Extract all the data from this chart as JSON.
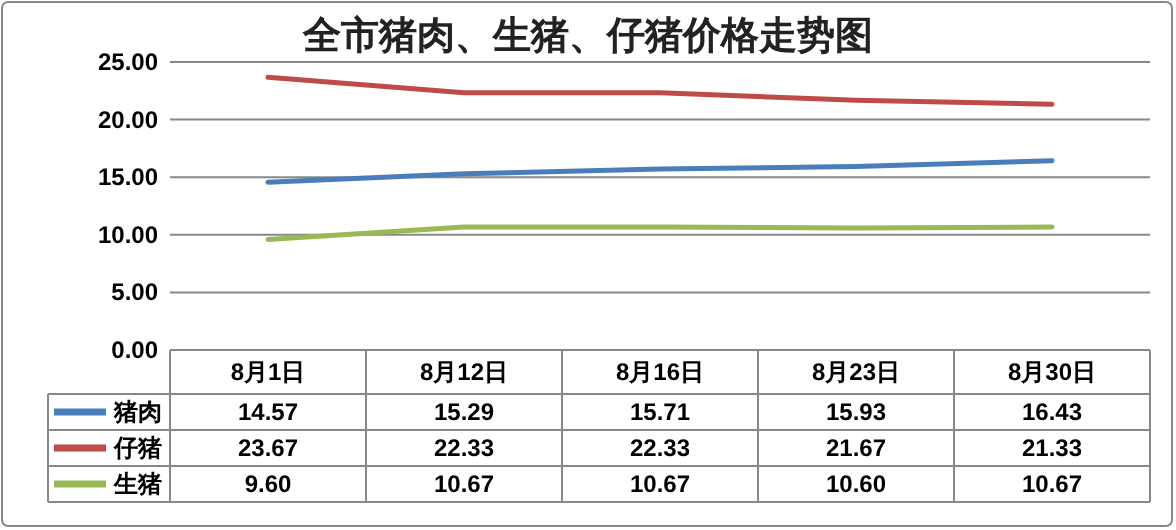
{
  "chart_data": {
    "type": "line",
    "title": "全市猪肉、生猪、仔猪价格走势图",
    "categories": [
      "8月1日",
      "8月12日",
      "8月16日",
      "8月23日",
      "8月30日"
    ],
    "series": [
      {
        "name": "猪肉",
        "color": "#4a7ebb",
        "values": [
          14.57,
          15.29,
          15.71,
          15.93,
          16.43
        ],
        "value_labels": [
          "14.57",
          "15.29",
          "15.71",
          "15.93",
          "16.43"
        ]
      },
      {
        "name": "仔猪",
        "color": "#be4b48",
        "values": [
          23.67,
          22.33,
          22.33,
          21.67,
          21.33
        ],
        "value_labels": [
          "23.67",
          "22.33",
          "22.33",
          "21.67",
          "21.33"
        ]
      },
      {
        "name": "生猪",
        "color": "#98b954",
        "values": [
          9.6,
          10.67,
          10.67,
          10.6,
          10.67
        ],
        "value_labels": [
          "9.60",
          "10.67",
          "10.67",
          "10.60",
          "10.67"
        ]
      }
    ],
    "ylim": [
      0,
      25
    ],
    "yticks": [
      {
        "value": 0,
        "label": "0.00"
      },
      {
        "value": 5,
        "label": "5.00"
      },
      {
        "value": 10,
        "label": "10.00"
      },
      {
        "value": 15,
        "label": "15.00"
      },
      {
        "value": 20,
        "label": "20.00"
      },
      {
        "value": 25,
        "label": "25.00"
      }
    ],
    "grid": "y",
    "legend": "bottom",
    "marker": "none",
    "line_style": "solid"
  }
}
